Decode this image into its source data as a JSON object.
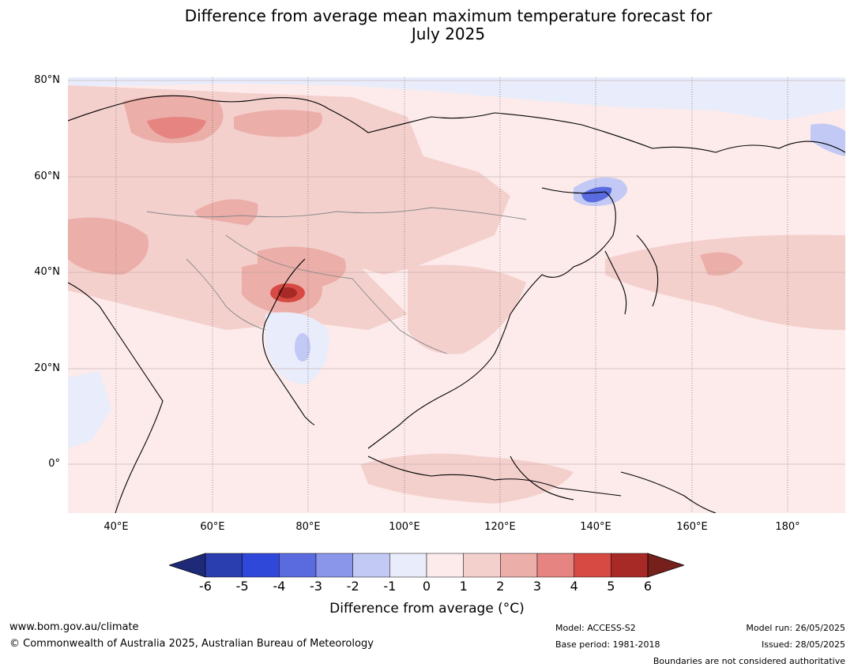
{
  "title_line1": "Difference from average mean maximum temperature forecast for",
  "title_line2": "July 2025",
  "map": {
    "lat_labels": [
      "80°N",
      "60°N",
      "40°N",
      "20°N",
      "0°"
    ],
    "lon_labels": [
      "40°E",
      "60°E",
      "80°E",
      "100°E",
      "120°E",
      "140°E",
      "160°E",
      "180°"
    ],
    "region_colors": {
      "base": "#fcebea",
      "warm1": "#f4d0cd",
      "warm2": "#ecaea9",
      "warm3": "#e58480",
      "warm4": "#d74a44",
      "warm5": "#a82a26",
      "cool1": "#e9ecfa",
      "cool2": "#c2c9f4",
      "cool3": "#8996e9",
      "cool4": "#5a6be0",
      "cool5": "#3048d9"
    }
  },
  "colorbar": {
    "ticks": [
      "-6",
      "-5",
      "-4",
      "-3",
      "-2",
      "-1",
      "0",
      "1",
      "2",
      "3",
      "4",
      "5",
      "6"
    ],
    "colors": [
      "#1e2a78",
      "#2a3eb0",
      "#3048d9",
      "#5a6be0",
      "#8996e9",
      "#c2c9f4",
      "#e9ecfa",
      "#fcebea",
      "#f4d0cd",
      "#ecaea9",
      "#e58480",
      "#d74a44",
      "#a82a26",
      "#76201c"
    ],
    "label": "Difference from average (°C)"
  },
  "footer": {
    "url": "www.bom.gov.au/climate",
    "copyright": "© Commonwealth of Australia 2025, Australian Bureau of Meteorology",
    "model": "Model: ACCESS-S2",
    "base_period": "Base period: 1981-2018",
    "model_run": "Model run: 26/05/2025",
    "issued": "Issued: 28/05/2025",
    "disclaimer": "Boundaries are not considered authoritative"
  }
}
